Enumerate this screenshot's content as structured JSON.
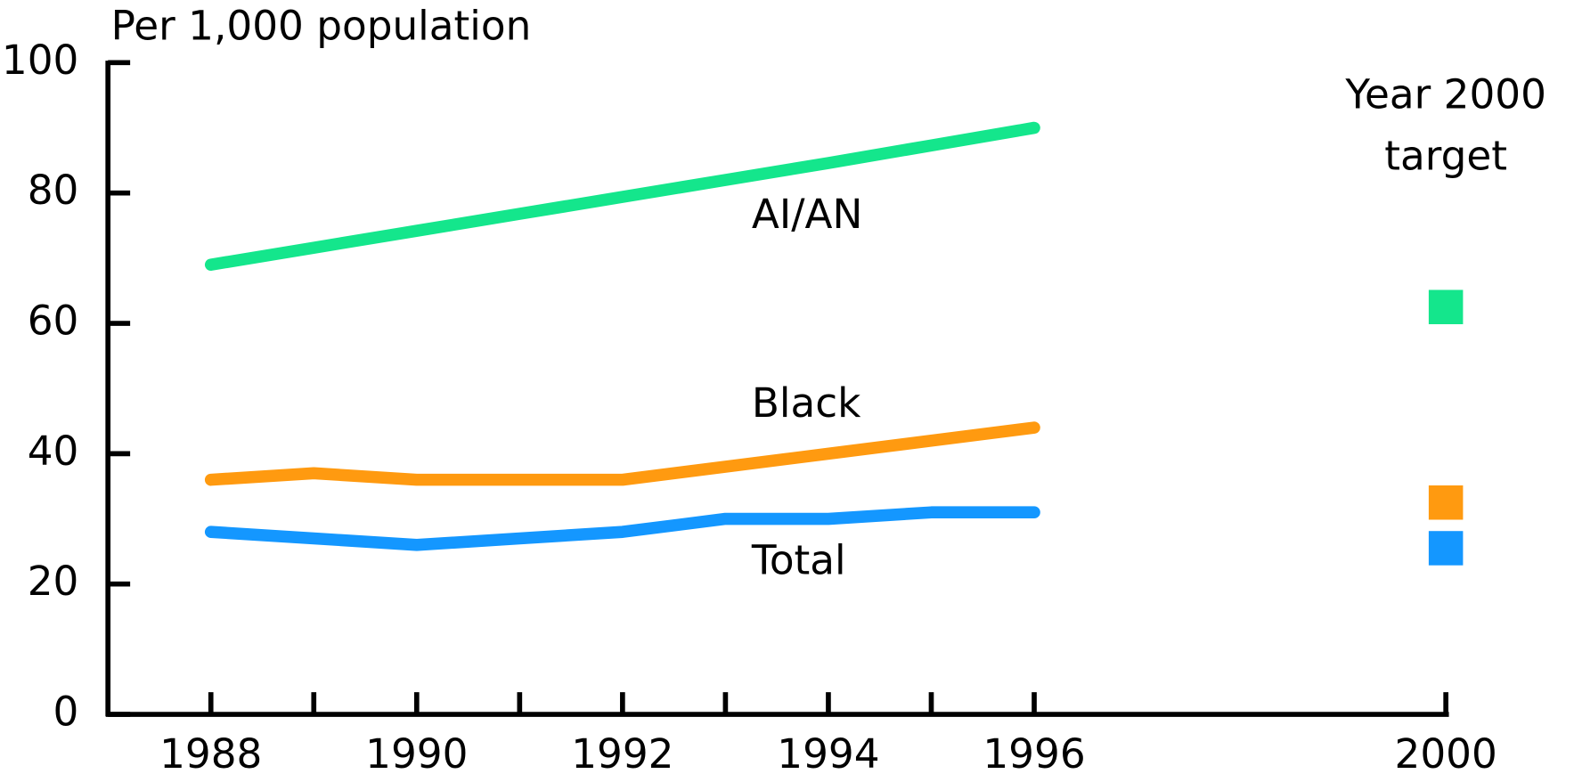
{
  "chart_data": {
    "type": "line",
    "y_label": "Per 1,000 population",
    "annotation": [
      "Year 2000",
      "target"
    ],
    "xlim": [
      1987,
      2000
    ],
    "xticks": [
      1988,
      1990,
      1992,
      1994,
      1996,
      2000
    ],
    "xticks_minor": [
      1989,
      1991,
      1993,
      1995
    ],
    "ylim": [
      0,
      100
    ],
    "yticks": [
      0,
      20,
      40,
      60,
      80,
      100
    ],
    "x": [
      1988,
      1989,
      1990,
      1991,
      1992,
      1993,
      1994,
      1995,
      1996
    ],
    "target_x": 2000,
    "series": [
      {
        "name": "AI/AN",
        "color": "#14e68c",
        "values": [
          69,
          71.6,
          74.2,
          76.8,
          79.4,
          82,
          84.6,
          87.3,
          90
        ],
        "target": 62.5
      },
      {
        "name": "Black",
        "color": "#ff9a10",
        "values": [
          36,
          37,
          36,
          36,
          36,
          38,
          40,
          42,
          44
        ],
        "target": 32.5
      },
      {
        "name": "Total",
        "color": "#1497ff",
        "values": [
          28,
          27,
          26,
          27,
          28,
          30,
          30,
          31,
          31
        ],
        "target": 25.5
      }
    ]
  }
}
